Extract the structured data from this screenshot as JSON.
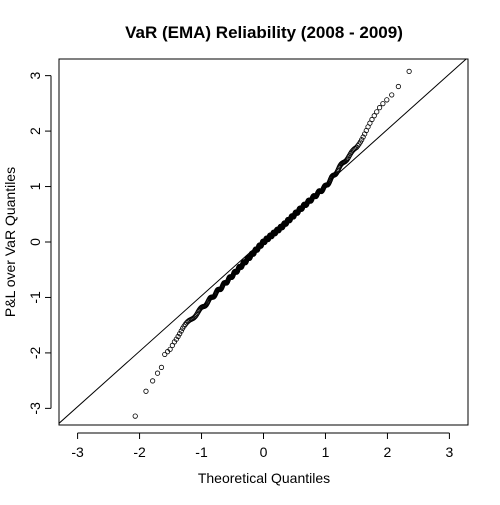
{
  "chart_data": {
    "type": "scatter",
    "title": "VaR (EMA) Reliability (2008 - 2009)",
    "xlabel": "Theoretical Quantiles",
    "ylabel": "P&L over VaR Quantiles",
    "xlim": [
      -3.3,
      3.3
    ],
    "ylim": [
      -3.3,
      3.3
    ],
    "x_ticks": [
      -3,
      -2,
      -1,
      0,
      1,
      2,
      3
    ],
    "y_ticks": [
      -3,
      -2,
      -1,
      0,
      1,
      2,
      3
    ],
    "grid": false,
    "legend": "none",
    "reference_line": {
      "intercept": 0.03,
      "slope": 1.0
    },
    "colors": {
      "points": "#000000",
      "line": "#000000",
      "axes": "#000000"
    },
    "qq_points": {
      "n": 500,
      "x_range": [
        -2.07,
        2.35
      ],
      "y_range": [
        -3.15,
        3.1
      ],
      "anchors": [
        {
          "x": -2.07,
          "y": -3.15
        },
        {
          "x": -2.0,
          "y": -3.0
        },
        {
          "x": -1.95,
          "y": -2.78
        },
        {
          "x": -1.85,
          "y": -2.65
        },
        {
          "x": -1.75,
          "y": -2.45
        },
        {
          "x": -1.65,
          "y": -2.3
        },
        {
          "x": -1.6,
          "y": -2.05
        },
        {
          "x": -1.5,
          "y": -1.92
        },
        {
          "x": -1.45,
          "y": -1.8
        },
        {
          "x": -1.3,
          "y": -1.55
        },
        {
          "x": -1.0,
          "y": -1.2
        },
        {
          "x": -0.5,
          "y": -0.6
        },
        {
          "x": 0.0,
          "y": 0.0
        },
        {
          "x": 0.3,
          "y": 0.28
        },
        {
          "x": 0.6,
          "y": 0.6
        },
        {
          "x": 1.0,
          "y": 1.0
        },
        {
          "x": 1.3,
          "y": 1.45
        },
        {
          "x": 1.5,
          "y": 1.7
        },
        {
          "x": 1.7,
          "y": 2.1
        },
        {
          "x": 1.9,
          "y": 2.45
        },
        {
          "x": 2.1,
          "y": 2.7
        },
        {
          "x": 2.35,
          "y": 3.1
        }
      ]
    }
  }
}
